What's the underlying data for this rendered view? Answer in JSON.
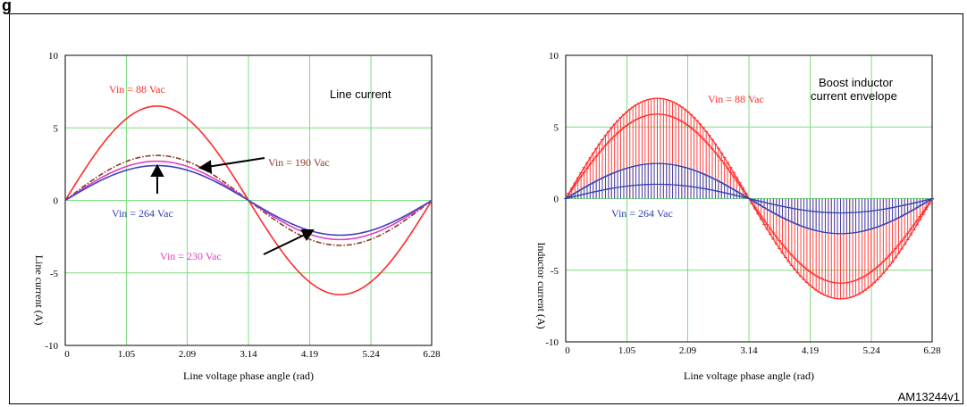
{
  "figure": {
    "label_fragment": "g",
    "id": "AM13244v1"
  },
  "chart_data": [
    {
      "type": "line",
      "title": "",
      "xlabel": "Line voltage phase angle (rad)",
      "ylabel": "Line current (A)",
      "xlim": [
        0,
        6.28
      ],
      "ylim": [
        -10,
        10
      ],
      "x_ticks": [
        "0",
        "1.05",
        "2.09",
        "3.14",
        "4.19",
        "5.24",
        "6.28"
      ],
      "y_ticks": [
        "10",
        "5",
        "0",
        "-5",
        "-10"
      ],
      "grid": true,
      "annotations": {
        "box_label": "Line current",
        "vin88": "Vin = 88 Vac",
        "vin190": "Vin = 190 Vac",
        "vin264": "Vin = 264 Vac",
        "vin230": "Vin = 230 Vac"
      },
      "series": [
        {
          "name": "Vin = 88 Vac",
          "waveform": "sine",
          "amplitude": 6.5,
          "color": "#ff2a2a",
          "style": "solid"
        },
        {
          "name": "Vin = 190 Vac",
          "waveform": "sine",
          "amplitude": 3.1,
          "color": "#8b3a2a",
          "style": "dashdot"
        },
        {
          "name": "Vin = 230 Vac",
          "waveform": "sine",
          "amplitude": 2.7,
          "color": "#e040c0",
          "style": "solid"
        },
        {
          "name": "Vin = 264 Vac",
          "waveform": "sine",
          "amplitude": 2.4,
          "color": "#4040c0",
          "style": "solid"
        }
      ]
    },
    {
      "type": "line",
      "title": "",
      "xlabel": "Line voltage phase angle (rad)",
      "ylabel": "Inductor current (A)",
      "xlim": [
        0,
        6.28
      ],
      "ylim": [
        -10,
        10
      ],
      "x_ticks": [
        "0",
        "1.05",
        "2.09",
        "3.14",
        "4.19",
        "5.24",
        "6.28"
      ],
      "y_ticks": [
        "10",
        "5",
        "0",
        "-5",
        "-10"
      ],
      "grid": true,
      "annotations": {
        "box_label_line1": "Boost inductor",
        "box_label_line2": "current envelope",
        "vin88": "Vin = 88 Vac",
        "vin264": "Vin = 264 Vac"
      },
      "series": [
        {
          "name": "Vin = 88 Vac",
          "waveform": "sine-envelope",
          "amplitude_high": 7.0,
          "amplitude_low": 5.9,
          "color": "#ff2a2a"
        },
        {
          "name": "Vin = 264 Vac",
          "waveform": "sine-envelope",
          "amplitude_high": 2.45,
          "amplitude_low": 1.0,
          "color": "#3040b0"
        }
      ]
    }
  ]
}
